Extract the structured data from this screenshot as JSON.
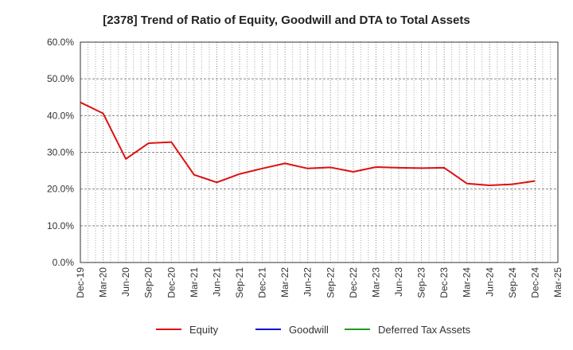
{
  "chart_data": {
    "type": "line",
    "title": "[2378]  Trend of Ratio of Equity, Goodwill and DTA to Total Assets",
    "xlabel": "",
    "ylabel": "",
    "ylim": [
      0,
      60
    ],
    "y_ticks": [
      "0.0%",
      "10.0%",
      "20.0%",
      "30.0%",
      "40.0%",
      "50.0%",
      "60.0%"
    ],
    "x_tick_labels": [
      "Dec-19",
      "Mar-20",
      "Jun-20",
      "Sep-20",
      "Dec-20",
      "Mar-21",
      "Jun-21",
      "Sep-21",
      "Dec-21",
      "Mar-22",
      "Jun-22",
      "Sep-22",
      "Dec-22",
      "Mar-23",
      "Jun-23",
      "Sep-23",
      "Dec-23",
      "Mar-24",
      "Jun-24",
      "Sep-24",
      "Dec-24",
      "Mar-25"
    ],
    "grid": true,
    "legend_position": "bottom",
    "series": [
      {
        "name": "Equity",
        "color": "#dd1111",
        "values": [
          43.6,
          40.6,
          28.2,
          32.5,
          32.8,
          23.9,
          21.8,
          24.1,
          25.6,
          27.0,
          25.6,
          25.9,
          24.7,
          26.0,
          25.8,
          25.7,
          25.8,
          21.5,
          21.0,
          21.3,
          22.2,
          null
        ]
      },
      {
        "name": "Goodwill",
        "color": "#1111cc",
        "values": [
          null,
          null,
          null,
          null,
          null,
          null,
          null,
          null,
          null,
          null,
          null,
          null,
          null,
          null,
          null,
          null,
          null,
          null,
          null,
          null,
          null,
          null
        ]
      },
      {
        "name": "Deferred Tax Assets",
        "color": "#229922",
        "values": [
          null,
          null,
          null,
          null,
          null,
          null,
          null,
          null,
          null,
          null,
          null,
          null,
          null,
          null,
          null,
          null,
          null,
          null,
          null,
          null,
          null,
          null
        ]
      }
    ]
  }
}
